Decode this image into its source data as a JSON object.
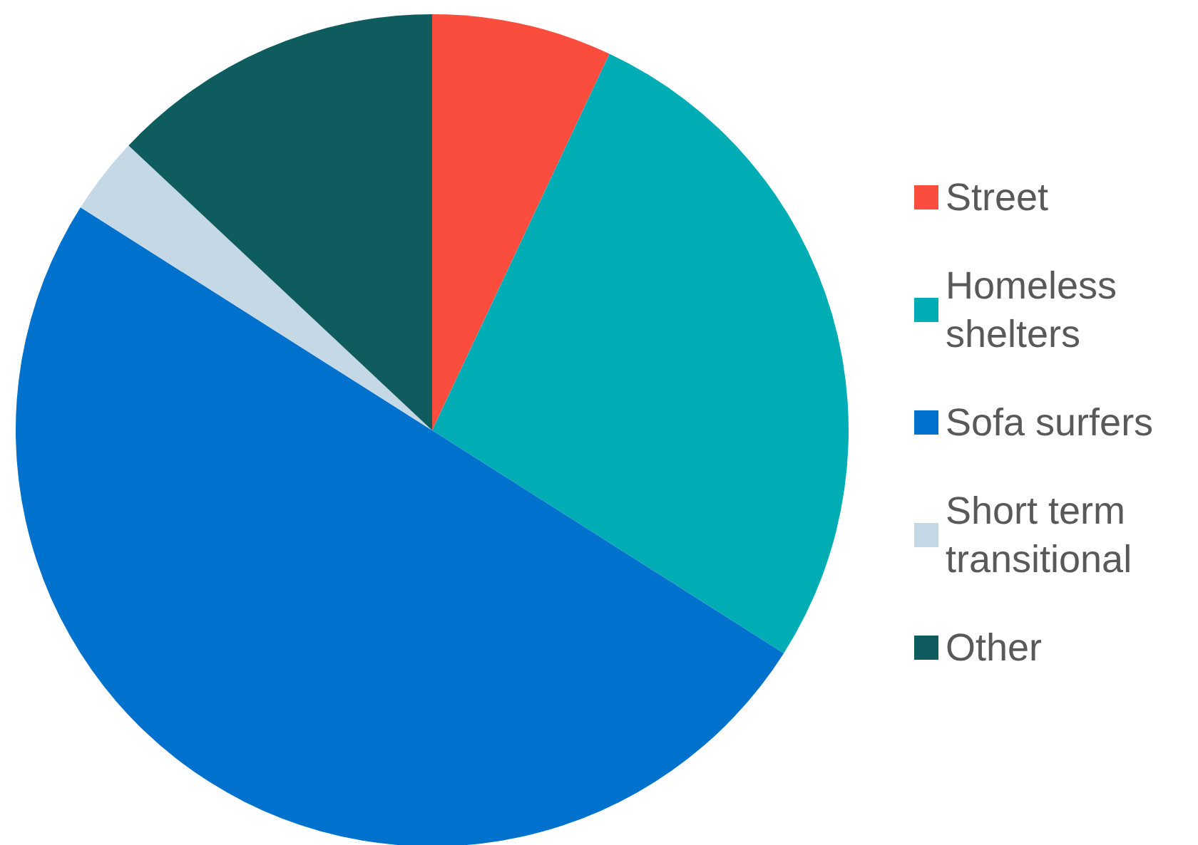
{
  "chart_data": {
    "type": "pie",
    "categories": [
      "Street",
      "Homeless shelters",
      "Sofa surfers",
      "Short term transitional",
      "Other"
    ],
    "values": [
      7,
      27,
      50,
      3,
      13
    ],
    "colors": [
      "#fa4d3e",
      "#00adb5",
      "#0072ce",
      "#c5d8e6",
      "#0e5c5e"
    ],
    "legend": "right"
  }
}
